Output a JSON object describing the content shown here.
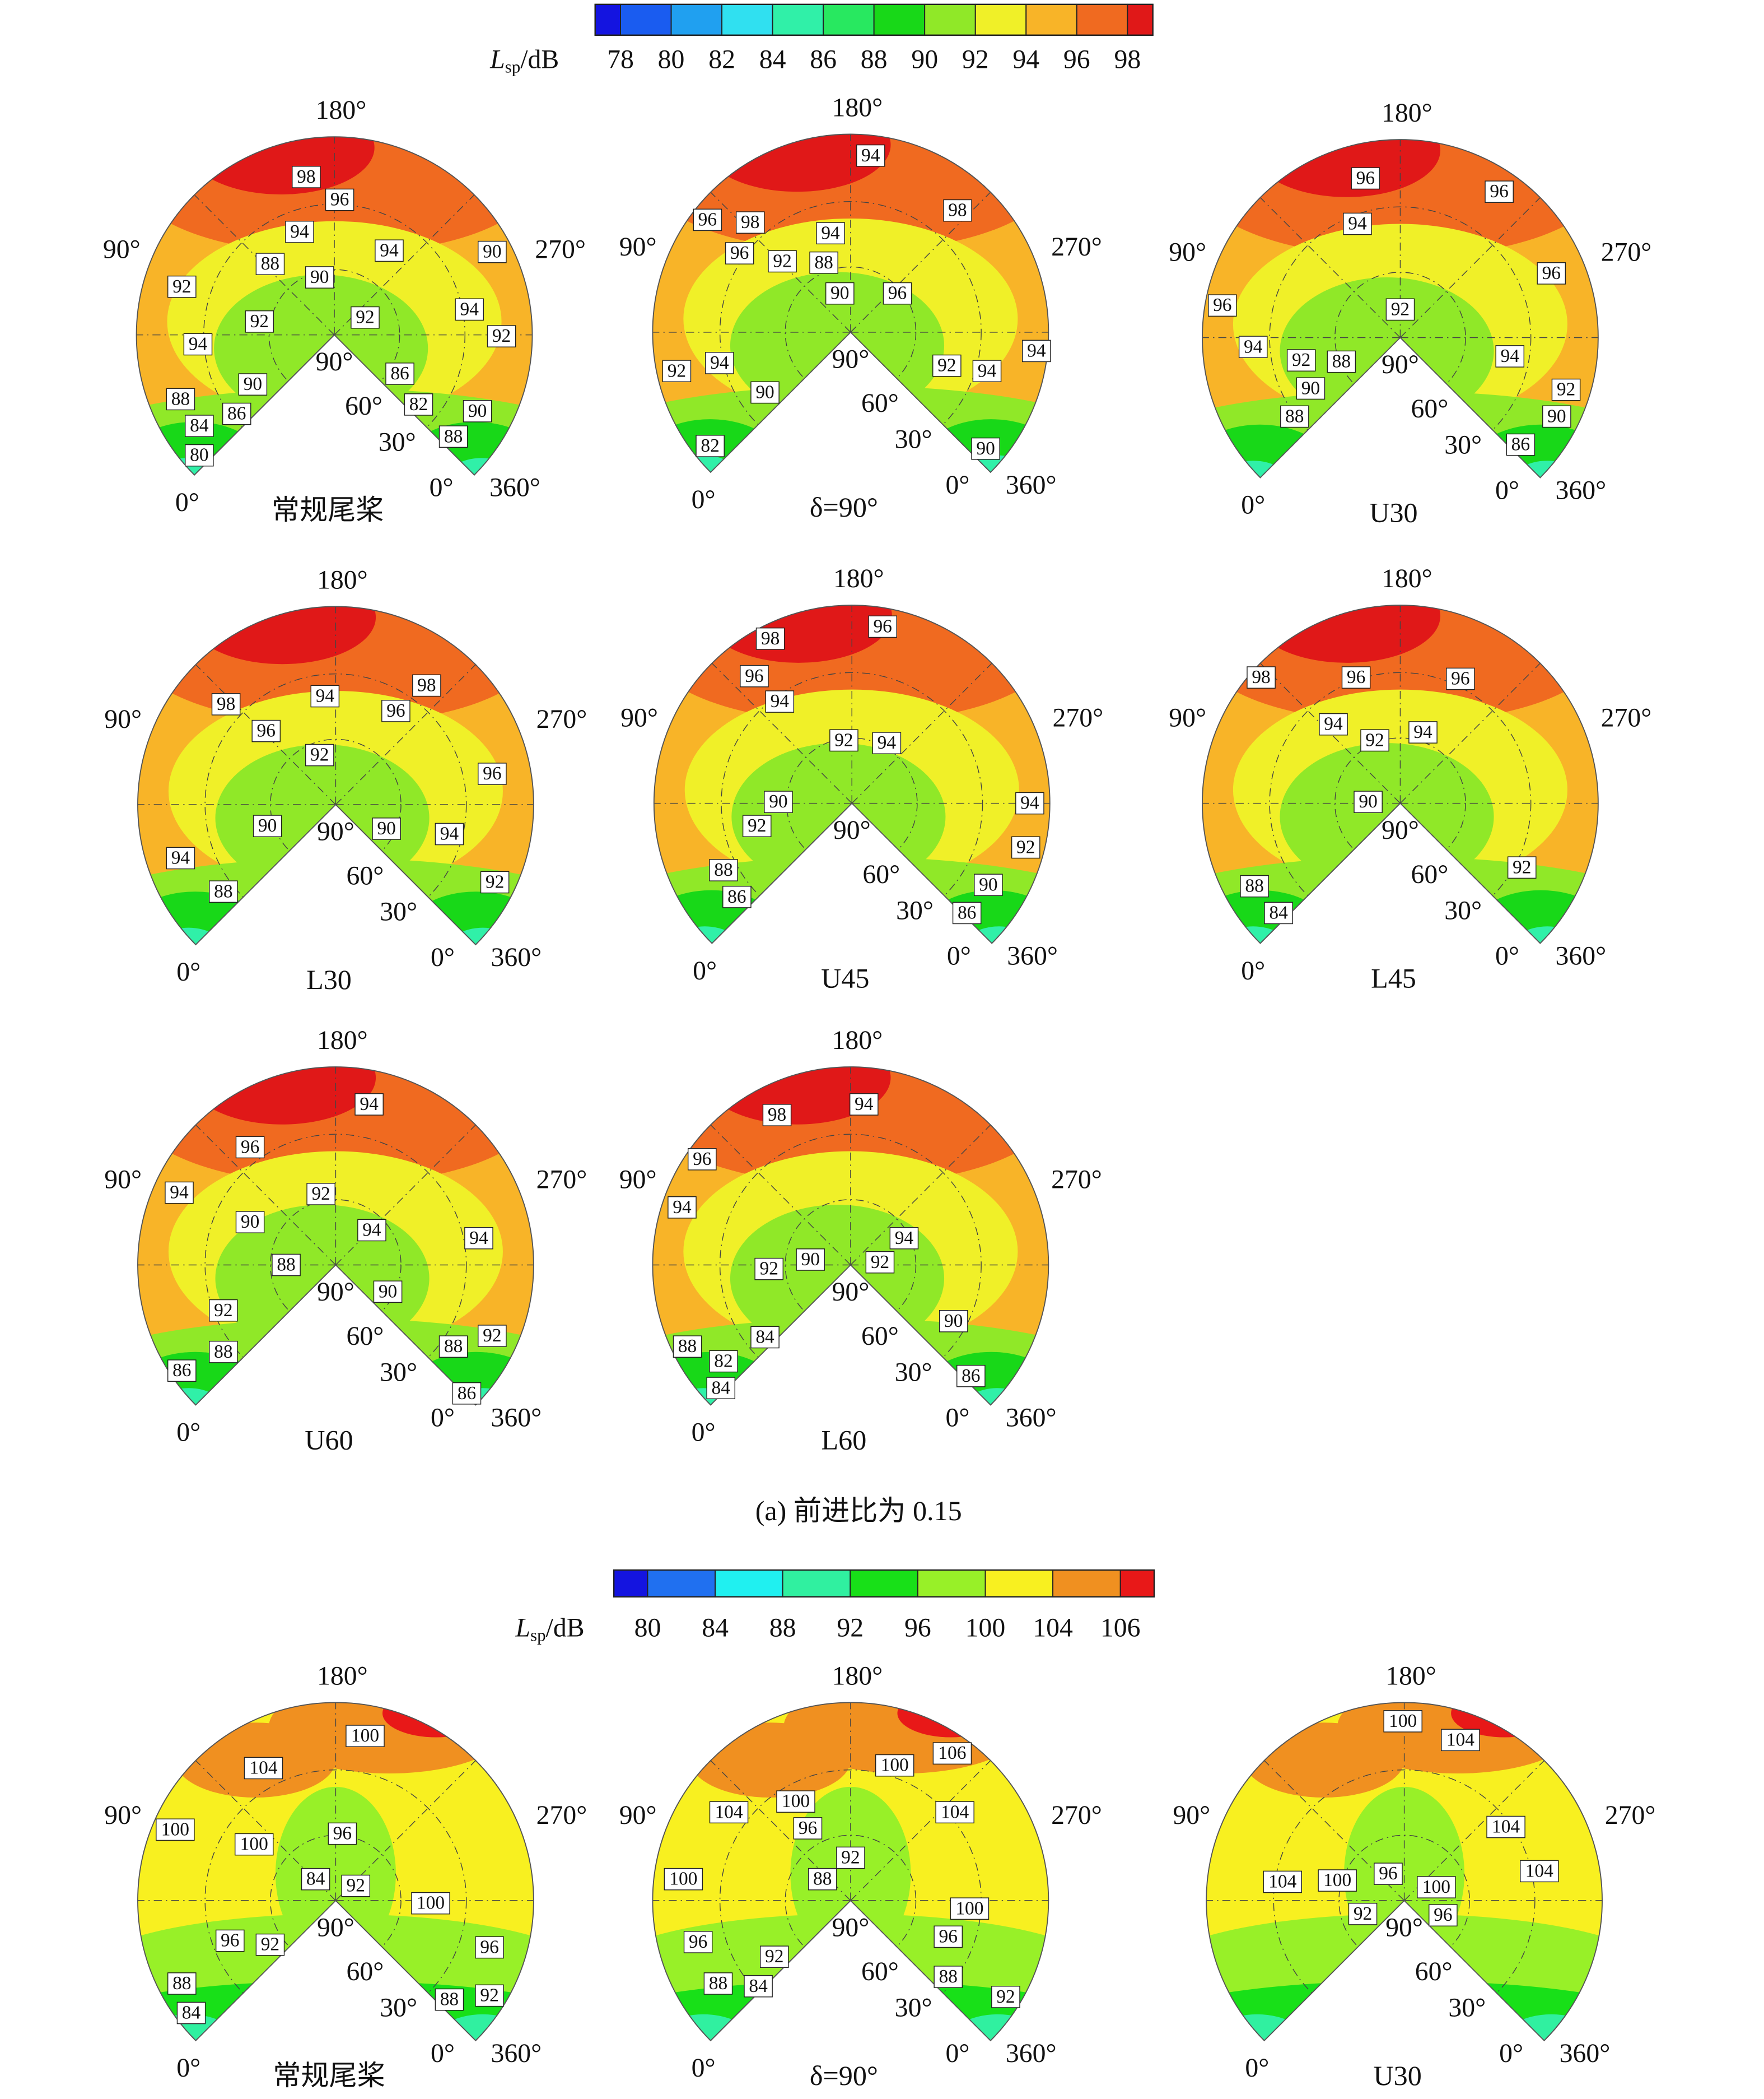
{
  "polar_labels": {
    "top": "180°",
    "left": "90°",
    "right": "270°",
    "start": "0°",
    "end_inner": "0°",
    "end": "360°",
    "inner": [
      "90°",
      "60°",
      "30°"
    ]
  },
  "figure_a": {
    "colorbar": {
      "symbol": "L",
      "subscript": "sp",
      "unit": "/dB",
      "ticks": [
        78,
        80,
        82,
        84,
        86,
        88,
        90,
        92,
        94,
        96,
        98
      ],
      "colors": [
        "#1414e0",
        "#1a5cf0",
        "#20a0f0",
        "#30e0f0",
        "#30f0a8",
        "#28e860",
        "#18d818",
        "#90e828",
        "#f0f028",
        "#f8b428",
        "#f06a20",
        "#e01818"
      ]
    },
    "panels": [
      {
        "title": "常规尾桨",
        "contour_labels": [
          98,
          96,
          94,
          94,
          90,
          92,
          88,
          90,
          92,
          92,
          94,
          92,
          94,
          90,
          86,
          88,
          86,
          82,
          90,
          84,
          88,
          80
        ]
      },
      {
        "title": "δ=90°",
        "contour_labels": [
          94,
          98,
          96,
          98,
          94,
          96,
          92,
          88,
          90,
          96,
          92,
          94,
          92,
          94,
          94,
          90,
          82,
          90
        ]
      },
      {
        "title": "U30",
        "contour_labels": [
          96,
          96,
          94,
          96,
          96,
          92,
          94,
          92,
          88,
          94,
          90,
          92,
          90,
          88,
          86
        ]
      },
      {
        "title": "L30",
        "contour_labels": [
          98,
          96,
          94,
          96,
          98,
          92,
          96,
          90,
          90,
          94,
          94,
          92,
          88
        ]
      },
      {
        "title": "U45",
        "contour_labels": [
          98,
          96,
          96,
          94,
          92,
          94,
          90,
          92,
          94,
          92,
          88,
          86,
          90,
          86
        ]
      },
      {
        "title": "L45",
        "contour_labels": [
          98,
          96,
          96,
          94,
          92,
          94,
          90,
          92,
          88,
          84
        ]
      },
      {
        "title": "U60",
        "contour_labels": [
          94,
          96,
          94,
          92,
          90,
          94,
          94,
          88,
          90,
          92,
          92,
          88,
          88,
          86,
          86
        ]
      },
      {
        "title": "L60",
        "contour_labels": [
          98,
          94,
          96,
          94,
          94,
          92,
          90,
          92,
          90,
          88,
          84,
          82,
          84,
          86
        ]
      }
    ],
    "caption": "(a) 前进比为 0.15"
  },
  "figure_b": {
    "colorbar": {
      "symbol": "L",
      "subscript": "sp",
      "unit": "/dB",
      "ticks": [
        80,
        84,
        88,
        92,
        96,
        100,
        104,
        106
      ],
      "colors": [
        "#1414e0",
        "#2070f0",
        "#20f0f0",
        "#30f0a0",
        "#18e018",
        "#98f028",
        "#f8f020",
        "#f09020",
        "#e81818"
      ]
    },
    "panels": [
      {
        "title": "常规尾桨",
        "contour_labels": [
          100,
          104,
          100,
          100,
          96,
          84,
          92,
          100,
          96,
          92,
          96,
          88,
          88,
          92,
          84
        ]
      },
      {
        "title": "δ=90°",
        "contour_labels": [
          106,
          100,
          100,
          104,
          96,
          104,
          92,
          88,
          100,
          100,
          96,
          96,
          92,
          88,
          84,
          88,
          92
        ]
      },
      {
        "title": "U30",
        "contour_labels": [
          100,
          104,
          104,
          104,
          100,
          96,
          100,
          104,
          92,
          96
        ]
      }
    ]
  }
}
